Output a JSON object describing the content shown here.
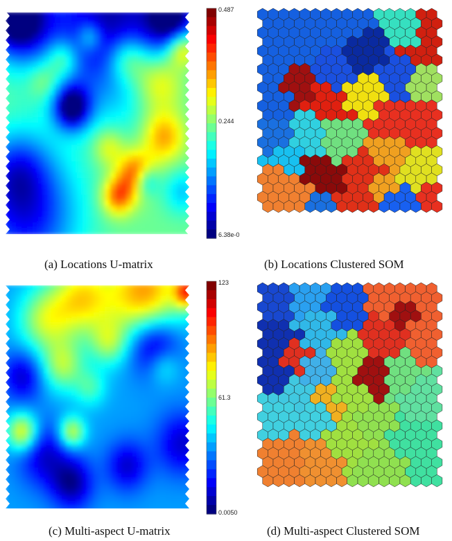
{
  "figure": {
    "panels": [
      {
        "id": "a",
        "caption": "(a) Locations U-matrix",
        "kind": "umatrix",
        "colorbar": {
          "max_label": "0.487",
          "mid_label": "0.244",
          "min_label": "6.38e-0"
        }
      },
      {
        "id": "b",
        "caption": "(b) Locations Clustered SOM",
        "kind": "clustered-som"
      },
      {
        "id": "c",
        "caption": "(c) Multi-aspect U-matrix",
        "kind": "umatrix",
        "colorbar": {
          "max_label": "123",
          "mid_label": "61.3",
          "min_label": "0.0050"
        }
      },
      {
        "id": "d",
        "caption": "(d) Multi-aspect Clustered SOM",
        "kind": "clustered-som"
      }
    ],
    "colormap": "jet"
  }
}
